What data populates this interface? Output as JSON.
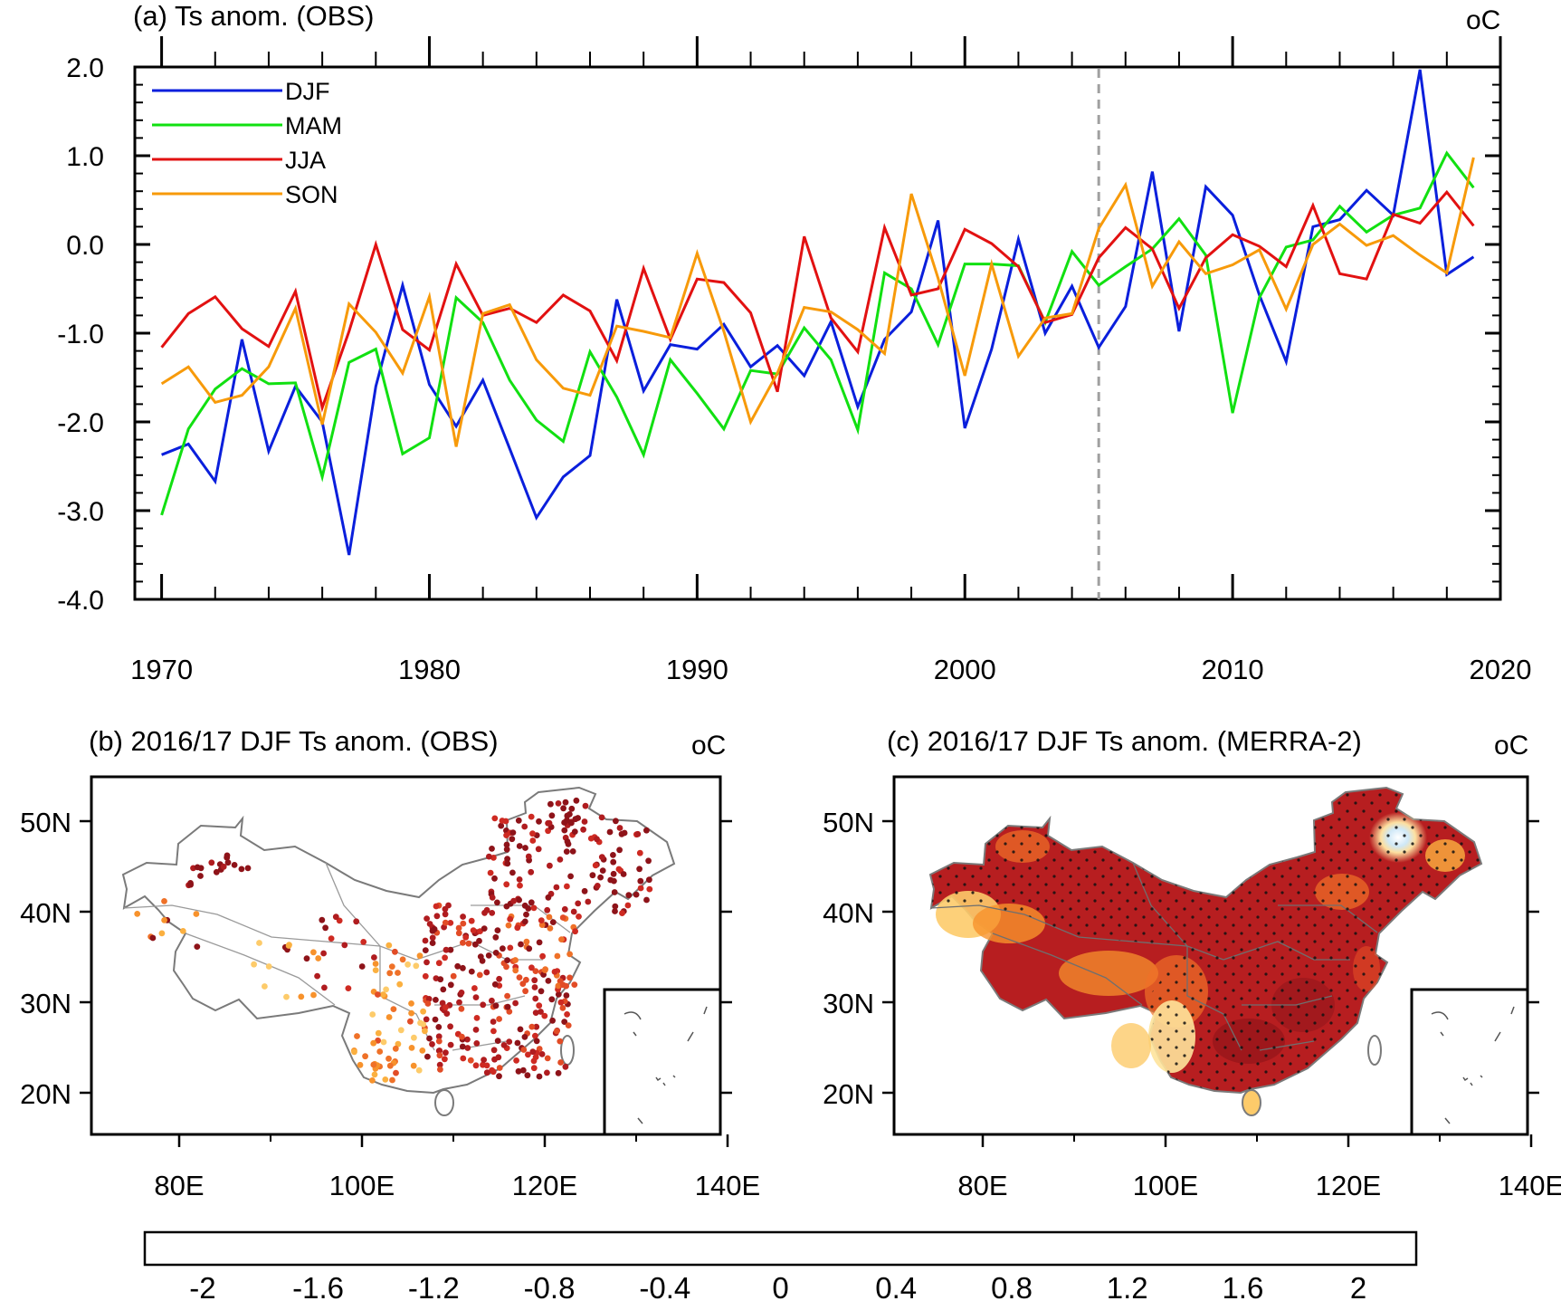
{
  "panel_a": {
    "title": "(a) Ts anom. (OBS)",
    "unit": "oC",
    "yticks": [
      "2.0",
      "1.0",
      "0.0",
      "-1.0",
      "-2.0",
      "-3.0",
      "-4.0"
    ],
    "xticks": [
      "1970",
      "1980",
      "1990",
      "2000",
      "2010",
      "2020"
    ]
  },
  "panel_b": {
    "title": "(b) 2016/17 DJF Ts anom. (OBS)",
    "unit": "oC",
    "lat_labels": [
      "50N",
      "40N",
      "30N",
      "20N"
    ],
    "lon_labels": [
      "80E",
      "100E",
      "120E",
      "140E"
    ]
  },
  "panel_c": {
    "title": "(c) 2016/17 DJF Ts anom. (MERRA-2)",
    "unit": "oC",
    "lat_labels": [
      "50N",
      "40N",
      "30N",
      "20N"
    ],
    "lon_labels": [
      "80E",
      "100E",
      "120E",
      "140E"
    ]
  },
  "colorbar": {
    "labels": [
      "-2",
      "-1.6",
      "-1.2",
      "-0.8",
      "-0.4",
      "0",
      "0.4",
      "0.8",
      "1.2",
      "1.6",
      "2"
    ],
    "colors": [
      "#1a2d66",
      "#214a94",
      "#2c62b4",
      "#3f84c8",
      "#5ea7db",
      "#84c3ea",
      "#a9d9f3",
      "#c8e7f7",
      "#e0f1fa",
      "#f2f8fc",
      "#ffffff",
      "#ffffff",
      "#fff3cf",
      "#fee39b",
      "#fdcb6a",
      "#fbb040",
      "#f7922c",
      "#ef7128",
      "#e24c26",
      "#ce2a22",
      "#b01c1f",
      "#8e1319"
    ]
  },
  "chart_data": [
    {
      "type": "line",
      "title": "(a) Ts anom. (OBS)",
      "unit": "oC",
      "xlim": [
        1969,
        2020
      ],
      "ylim": [
        -4.0,
        2.0
      ],
      "grid": false,
      "legend_position": "top-left",
      "vertical_reference_line": {
        "x": 2005,
        "style": "dashed",
        "color": "#a0a0a0"
      },
      "x": [
        1970,
        1971,
        1972,
        1973,
        1974,
        1975,
        1976,
        1977,
        1978,
        1979,
        1980,
        1981,
        1982,
        1983,
        1984,
        1985,
        1986,
        1987,
        1988,
        1989,
        1990,
        1991,
        1992,
        1993,
        1994,
        1995,
        1996,
        1997,
        1998,
        1999,
        2000,
        2001,
        2002,
        2003,
        2004,
        2005,
        2006,
        2007,
        2008,
        2009,
        2010,
        2011,
        2012,
        2013,
        2014,
        2015,
        2016,
        2017,
        2018,
        2019
      ],
      "series": [
        {
          "name": "DJF",
          "color": "#0a1fdc",
          "values": [
            -2.37,
            -2.25,
            -2.67,
            -1.07,
            -2.33,
            -1.6,
            -2.0,
            -3.5,
            -1.6,
            -0.46,
            -1.58,
            -2.05,
            -1.53,
            -2.3,
            -3.08,
            -2.62,
            -2.38,
            -0.62,
            -1.65,
            -1.13,
            -1.18,
            -0.9,
            -1.38,
            -1.14,
            -1.48,
            -0.87,
            -1.83,
            -1.07,
            -0.76,
            0.27,
            -2.07,
            -1.18,
            0.06,
            -1.0,
            -0.47,
            -1.16,
            -0.7,
            0.82,
            -0.98,
            0.65,
            0.33,
            -0.57,
            -1.32,
            0.2,
            0.28,
            0.61,
            0.33,
            1.97,
            -0.34,
            -0.14
          ]
        },
        {
          "name": "MAM",
          "color": "#11e011",
          "values": [
            -3.05,
            -2.08,
            -1.63,
            -1.4,
            -1.57,
            -1.56,
            -2.62,
            -1.33,
            -1.18,
            -2.36,
            -2.18,
            -0.6,
            -0.88,
            -1.53,
            -1.98,
            -2.22,
            -1.21,
            -1.72,
            -2.37,
            -1.3,
            -1.68,
            -2.08,
            -1.42,
            -1.46,
            -0.94,
            -1.3,
            -2.09,
            -0.32,
            -0.5,
            -1.13,
            -0.22,
            -0.22,
            -0.24,
            -0.88,
            -0.08,
            -0.46,
            -0.25,
            -0.05,
            0.29,
            -0.12,
            -1.9,
            -0.6,
            -0.03,
            0.05,
            0.43,
            0.14,
            0.33,
            0.41,
            1.03,
            0.64
          ]
        },
        {
          "name": "JJA",
          "color": "#e21111",
          "values": [
            -1.16,
            -0.78,
            -0.59,
            -0.95,
            -1.15,
            -0.53,
            -1.84,
            -0.98,
            0.0,
            -0.96,
            -1.19,
            -0.22,
            -0.8,
            -0.72,
            -0.88,
            -0.57,
            -0.75,
            -1.31,
            -0.27,
            -1.07,
            -0.39,
            -0.43,
            -0.77,
            -1.66,
            0.09,
            -0.83,
            -1.21,
            0.19,
            -0.57,
            -0.5,
            0.17,
            0.01,
            -0.25,
            -0.88,
            -0.79,
            -0.15,
            0.19,
            -0.05,
            -0.72,
            -0.15,
            0.11,
            -0.02,
            -0.25,
            0.44,
            -0.33,
            -0.39,
            0.34,
            0.24,
            0.59,
            0.21
          ]
        },
        {
          "name": "SON",
          "color": "#f79a0a",
          "values": [
            -1.57,
            -1.38,
            -1.78,
            -1.7,
            -1.38,
            -0.72,
            -2.03,
            -0.67,
            -0.99,
            -1.45,
            -0.59,
            -2.28,
            -0.78,
            -0.68,
            -1.3,
            -1.62,
            -1.7,
            -0.92,
            -0.98,
            -1.05,
            -0.1,
            -0.98,
            -2.0,
            -1.45,
            -0.71,
            -0.76,
            -0.96,
            -1.23,
            0.57,
            -0.38,
            -1.48,
            -0.22,
            -1.26,
            -0.83,
            -0.78,
            0.18,
            0.67,
            -0.47,
            0.03,
            -0.33,
            -0.23,
            -0.06,
            -0.73,
            0.0,
            0.23,
            -0.01,
            0.1,
            -0.12,
            -0.32,
            0.98
          ]
        }
      ]
    }
  ]
}
